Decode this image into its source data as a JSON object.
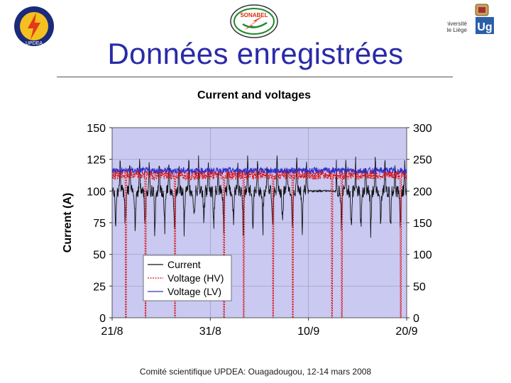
{
  "slide": {
    "title": "Données enregistrées",
    "footer": "Comité scientifique UPDEA: Ouagadougou, 12-14 mars 2008"
  },
  "logos": {
    "left_text": "UPDEA",
    "center_text": "SONABEL",
    "right_text_line1": "Université",
    "right_text_line2": "de Liège"
  },
  "colors": {
    "title": "#2a2aa8",
    "plot_bg": "#c9c9f2",
    "current": "#111111",
    "voltage_hv": "#dd1111",
    "voltage_lv": "#3030cc"
  },
  "chart_data": {
    "type": "line",
    "title": "Current and voltages",
    "ylabel": "Current (A)",
    "x_ticks": [
      "21/8",
      "31/8",
      "10/9",
      "20/9"
    ],
    "x_range_days": [
      0,
      30
    ],
    "y_left_ticks": [
      0,
      25,
      50,
      75,
      100,
      125,
      150
    ],
    "y_right_ticks": [
      0,
      50,
      100,
      150,
      200,
      250,
      300
    ],
    "ylim_left": [
      0,
      150
    ],
    "ylim_right": [
      0,
      300
    ],
    "legend_position": "bottom-left",
    "grid": true,
    "series": [
      {
        "name": "Current",
        "axis": "left",
        "style": "solid",
        "color": "#111111",
        "baseline": 100,
        "peak": 125,
        "trough": 68,
        "pattern": "daily cycle, flat gap 10/9 - 13/9"
      },
      {
        "name": "Voltage (HV)",
        "axis": "right",
        "style": "dotted",
        "color": "#dd1111",
        "baseline": 225,
        "dropouts_to_zero": [
          "22/8",
          "24/8",
          "27/8",
          "1/9",
          "3/9",
          "6/9",
          "8/9",
          "12/9",
          "13/9",
          "19/9"
        ]
      },
      {
        "name": "Voltage (LV)",
        "axis": "right",
        "style": "solid",
        "color": "#3030cc",
        "baseline": 232,
        "pattern": "near-constant with small ripple"
      }
    ]
  }
}
